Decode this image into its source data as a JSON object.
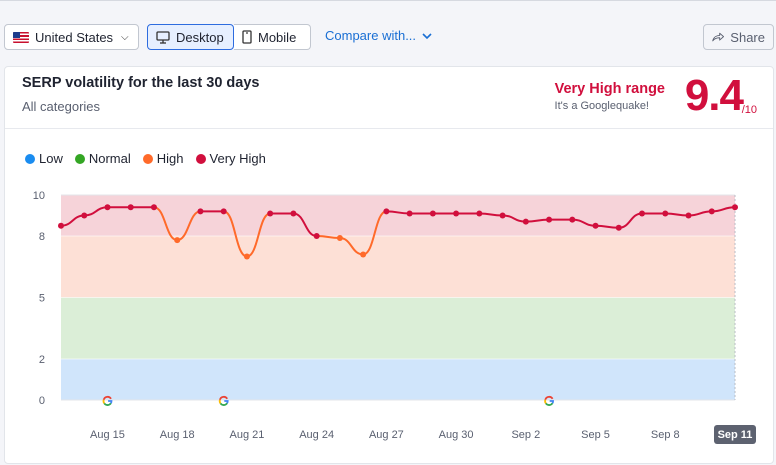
{
  "toolbar": {
    "country": "United States",
    "desktop": "Desktop",
    "mobile": "Mobile",
    "compare": "Compare with...",
    "share": "Share"
  },
  "card": {
    "title": "SERP volatility for the last 30 days",
    "subtitle": "All categories",
    "range_label": "Very High range",
    "range_sub": "It's a Googlequake!",
    "score": "9.4",
    "score_den": "/10"
  },
  "legend": [
    {
      "label": "Low",
      "color": "#1a8cf0"
    },
    {
      "label": "Normal",
      "color": "#34a624"
    },
    {
      "label": "High",
      "color": "#ff6a2a"
    },
    {
      "label": "Very High",
      "color": "#d10f3d"
    }
  ],
  "chart_data": {
    "type": "line",
    "ylim": [
      0,
      10
    ],
    "yticks": [
      0,
      2,
      5,
      8,
      10
    ],
    "bands": [
      {
        "name": "Low",
        "from": 0,
        "to": 2,
        "color": "#d0e5fb"
      },
      {
        "name": "Normal",
        "from": 2,
        "to": 5,
        "color": "#dbeed7"
      },
      {
        "name": "High",
        "from": 5,
        "to": 8,
        "color": "#fde0d6"
      },
      {
        "name": "Very High",
        "from": 8,
        "to": 10,
        "color": "#f6d3d9"
      }
    ],
    "xtick_labels": [
      "Aug 15",
      "Aug 18",
      "Aug 21",
      "Aug 24",
      "Aug 27",
      "Aug 30",
      "Sep 2",
      "Sep 5",
      "Sep 8",
      "Sep 11"
    ],
    "xtick_index": [
      2,
      5,
      8,
      11,
      14,
      17,
      20,
      23,
      26,
      29
    ],
    "highlighted_xtick": "Sep 11",
    "dates": [
      "Aug 13",
      "Aug 14",
      "Aug 15",
      "Aug 16",
      "Aug 17",
      "Aug 18",
      "Aug 19",
      "Aug 20",
      "Aug 21",
      "Aug 22",
      "Aug 23",
      "Aug 24",
      "Aug 25",
      "Aug 26",
      "Aug 27",
      "Aug 28",
      "Aug 29",
      "Aug 30",
      "Aug 31",
      "Sep 1",
      "Sep 2",
      "Sep 3",
      "Sep 4",
      "Sep 5",
      "Sep 6",
      "Sep 7",
      "Sep 8",
      "Sep 9",
      "Sep 10",
      "Sep 11"
    ],
    "values": [
      8.5,
      9.0,
      9.4,
      9.4,
      9.4,
      7.8,
      9.2,
      9.2,
      7.0,
      9.1,
      9.1,
      8.0,
      7.9,
      7.1,
      9.2,
      9.1,
      9.1,
      9.1,
      9.1,
      9.0,
      8.7,
      8.8,
      8.8,
      8.5,
      8.4,
      9.1,
      9.1,
      9.0,
      9.2,
      9.4
    ],
    "google_update_markers": [
      "Aug 15",
      "Aug 20",
      "Sep 3"
    ]
  }
}
